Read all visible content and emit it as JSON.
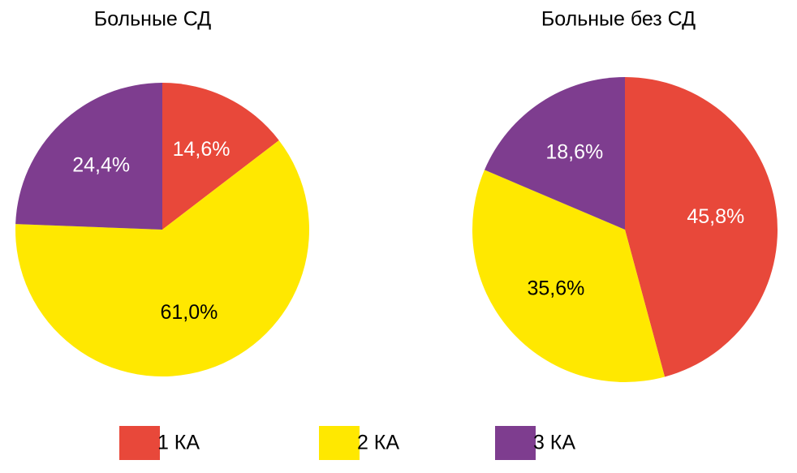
{
  "chart_data": [
    {
      "type": "pie",
      "title": "Больные СД",
      "categories": [
        "1 КА",
        "2 КА",
        "3 КА"
      ],
      "values": [
        14.6,
        61.0,
        24.4
      ],
      "value_labels": [
        "14,6%",
        "61,0%",
        "24,4%"
      ],
      "colors": [
        "#e8483a",
        "#ffe800",
        "#7e3d8f"
      ]
    },
    {
      "type": "pie",
      "title": "Больные без СД",
      "categories": [
        "1 КА",
        "2 КА",
        "3 КА"
      ],
      "values": [
        45.8,
        35.6,
        18.6
      ],
      "value_labels": [
        "45,8%",
        "35,6%",
        "18,6%"
      ],
      "colors": [
        "#e8483a",
        "#ffe800",
        "#7e3d8f"
      ]
    }
  ]
}
